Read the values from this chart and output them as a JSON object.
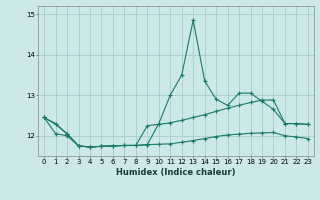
{
  "xlabel": "Humidex (Indice chaleur)",
  "ylabel": "",
  "background_color": "#cce8e8",
  "grid_color": "#aacccc",
  "line_color": "#1a7a6a",
  "x": [
    0,
    1,
    2,
    3,
    4,
    5,
    6,
    7,
    8,
    9,
    10,
    11,
    12,
    13,
    14,
    15,
    16,
    17,
    18,
    19,
    20,
    21,
    22,
    23
  ],
  "line1": [
    12.45,
    12.3,
    12.05,
    11.75,
    11.72,
    11.74,
    11.75,
    11.76,
    11.76,
    11.78,
    12.3,
    13.0,
    13.5,
    14.85,
    13.35,
    12.9,
    12.75,
    13.05,
    13.05,
    12.85,
    12.65,
    12.3,
    12.3,
    12.28
  ],
  "line2": [
    12.45,
    12.28,
    12.05,
    11.75,
    11.72,
    11.74,
    11.75,
    11.76,
    11.76,
    12.25,
    12.28,
    12.32,
    12.38,
    12.45,
    12.52,
    12.6,
    12.68,
    12.75,
    12.82,
    12.88,
    12.88,
    12.3,
    12.3,
    12.28
  ],
  "line3": [
    12.45,
    12.05,
    12.0,
    11.75,
    11.72,
    11.74,
    11.75,
    11.76,
    11.76,
    11.78,
    11.79,
    11.8,
    11.84,
    11.88,
    11.93,
    11.98,
    12.02,
    12.04,
    12.06,
    12.07,
    12.08,
    12.0,
    11.97,
    11.93
  ],
  "ylim": [
    11.5,
    15.2
  ],
  "yticks": [
    12,
    13,
    14,
    15
  ],
  "xlim": [
    -0.5,
    23.5
  ],
  "figsize": [
    3.2,
    2.0
  ],
  "dpi": 100
}
